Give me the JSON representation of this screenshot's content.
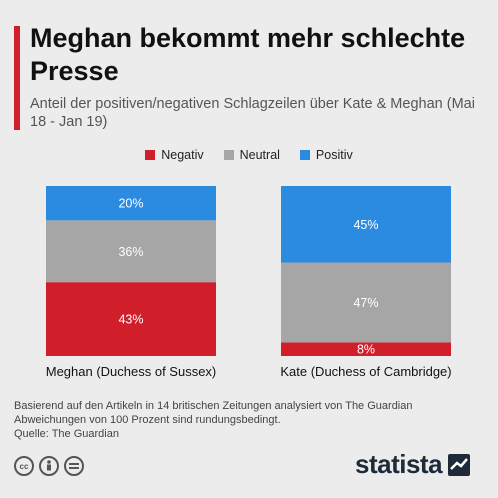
{
  "title": "Meghan bekommt mehr schlechte Presse",
  "subtitle": "Anteil der positiven/negativen Schlagzeilen über Kate & Meghan (Mai 18 - Jan 19)",
  "colors": {
    "negativ": "#d01f2b",
    "neutral": "#a6a6a6",
    "positiv": "#2a8be0",
    "accent": "#d01f2b"
  },
  "chart_data": {
    "type": "bar",
    "stacked": true,
    "percent": true,
    "categories": [
      "Meghan (Duchess of Sussex)",
      "Kate (Duchess of Cambridge)"
    ],
    "series": [
      {
        "name": "Negativ",
        "values": [
          43,
          8
        ]
      },
      {
        "name": "Neutral",
        "values": [
          36,
          47
        ]
      },
      {
        "name": "Positiv",
        "values": [
          20,
          45
        ]
      }
    ],
    "labels": [
      [
        "43%",
        "8%"
      ],
      [
        "36%",
        "47%"
      ],
      [
        "20%",
        "45%"
      ]
    ],
    "legend_position": "top",
    "grid": false
  },
  "footer": {
    "line1": "Basierend auf den Artikeln in 14 britischen Zeitungen analysiert von The Guardian",
    "line2": "Abweichungen von 100 Prozent sind rundungsbedingt.",
    "line3": "Quelle: The Guardian"
  },
  "icons": [
    "cc-icon",
    "person-icon",
    "equals-icon"
  ],
  "brand": "statista"
}
